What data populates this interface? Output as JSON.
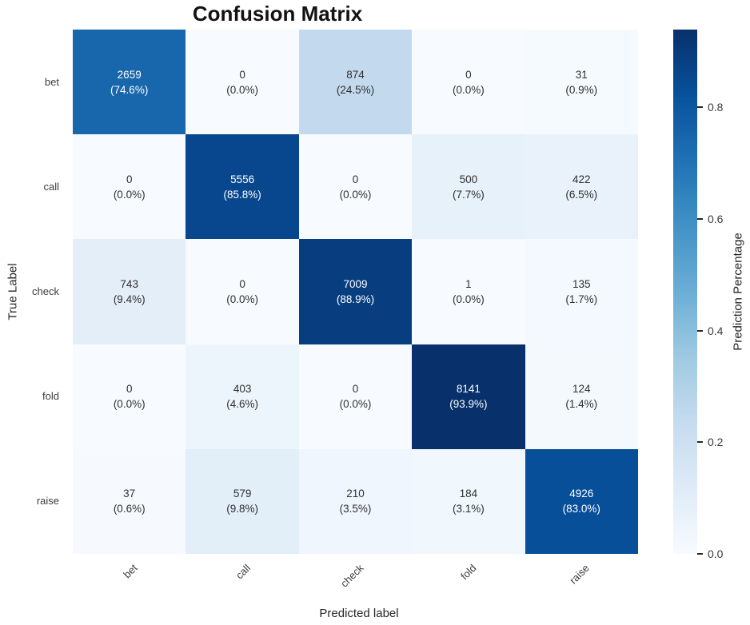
{
  "chart_data": {
    "type": "heatmap",
    "title": "Confusion Matrix",
    "xlabel": "Predicted label",
    "ylabel": "True Label",
    "x_tick_labels": [
      "bet",
      "call",
      "check",
      "fold",
      "raise"
    ],
    "y_tick_labels": [
      "bet",
      "call",
      "check",
      "fold",
      "raise"
    ],
    "cell_counts": [
      [
        2659,
        0,
        874,
        0,
        31
      ],
      [
        0,
        5556,
        0,
        500,
        422
      ],
      [
        743,
        0,
        7009,
        1,
        135
      ],
      [
        0,
        403,
        0,
        8141,
        124
      ],
      [
        37,
        579,
        210,
        184,
        4926
      ]
    ],
    "cell_percents": [
      [
        74.6,
        0.0,
        24.5,
        0.0,
        0.9
      ],
      [
        0.0,
        85.8,
        0.0,
        7.7,
        6.5
      ],
      [
        9.4,
        0.0,
        88.9,
        0.0,
        1.7
      ],
      [
        0.0,
        4.6,
        0.0,
        93.9,
        1.4
      ],
      [
        0.6,
        9.8,
        3.5,
        3.1,
        83.0
      ]
    ],
    "annotation_format": "count newline (percent%)",
    "colorbar": {
      "label": "Prediction Percentage",
      "tick_labels": [
        "0.8",
        "0.6",
        "0.4",
        "0.2",
        "0.0"
      ],
      "tick_values": [
        0.8,
        0.6,
        0.4,
        0.2,
        0.0
      ],
      "vmin": 0.0,
      "vmax": 0.939,
      "position": "right"
    },
    "colormap": {
      "name": "Blues",
      "stops": [
        "#f7fbff",
        "#deebf7",
        "#c6dbef",
        "#9ecae1",
        "#6baed6",
        "#4292c6",
        "#2171b5",
        "#08519c",
        "#08306b"
      ]
    },
    "cell_text_color_dark": "#2f2f2f",
    "cell_text_color_light": "#ffffff",
    "grid": false,
    "legend_position": "none"
  }
}
